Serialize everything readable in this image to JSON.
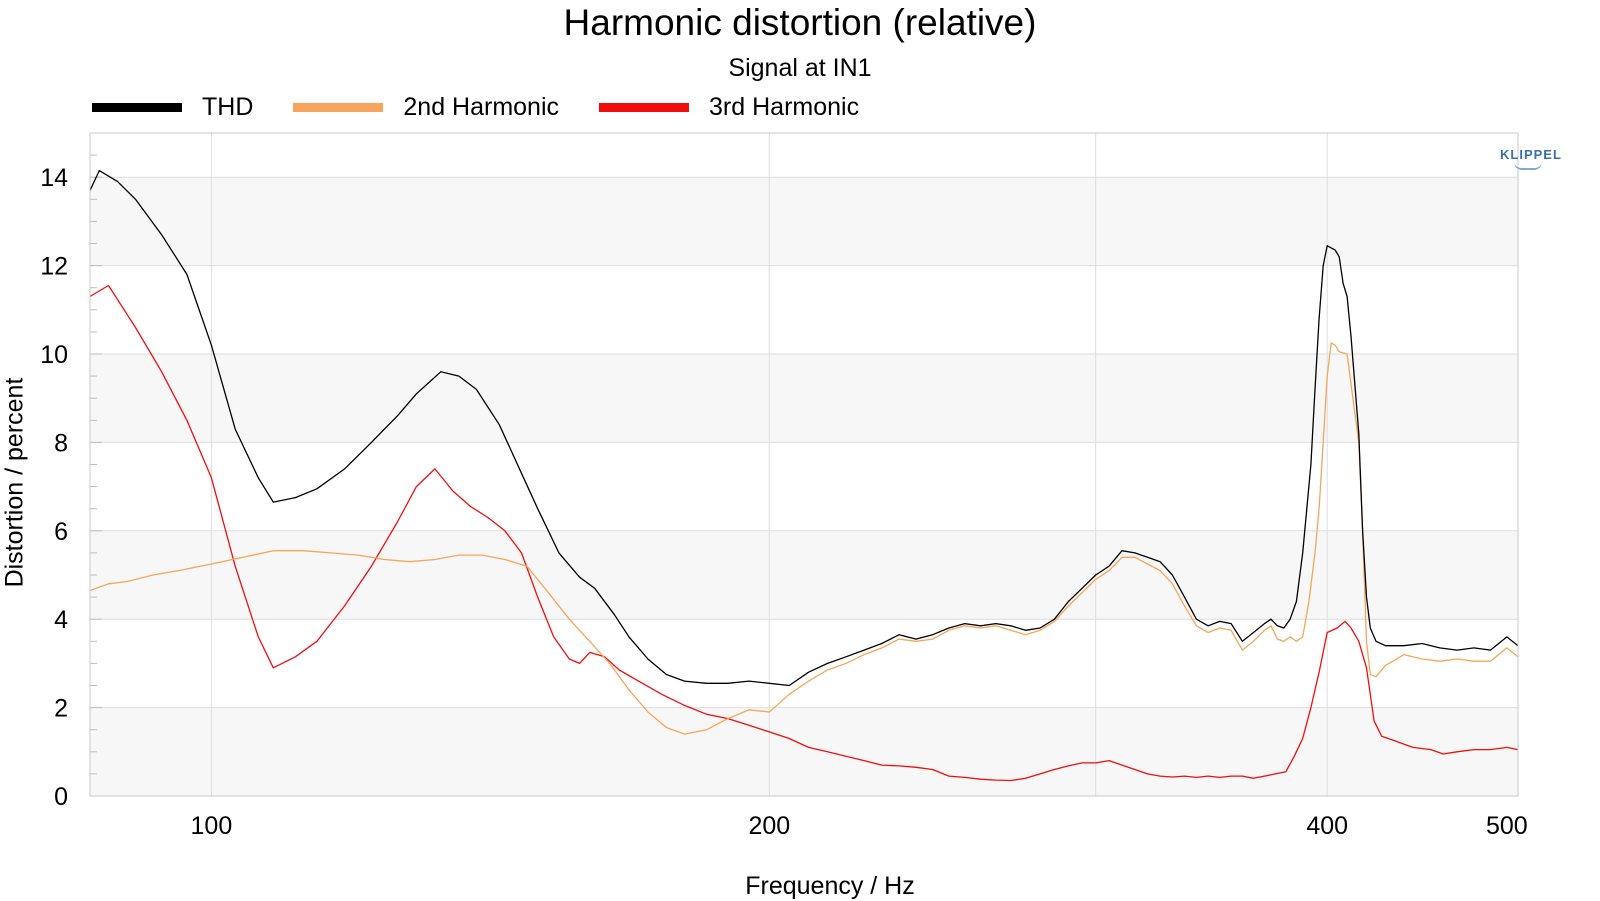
{
  "chart_data": {
    "type": "line",
    "title": "Harmonic distortion (relative)",
    "subtitle": "Signal at IN1",
    "xlabel": "Frequency / Hz",
    "ylabel": "Distortion / percent",
    "xscale": "log",
    "xlim": [
      86,
      507
    ],
    "ylim": [
      0,
      15
    ],
    "x_ticks": [
      100,
      200,
      400,
      500
    ],
    "y_ticks": [
      0,
      2,
      4,
      6,
      8,
      10,
      12,
      14
    ],
    "grid": true,
    "legend_position": "top-left",
    "brand": "KLIPPEL",
    "series": [
      {
        "name": "THD",
        "color": "#000000",
        "points": [
          [
            86,
            13.7
          ],
          [
            87,
            14.15
          ],
          [
            89,
            13.9
          ],
          [
            91,
            13.5
          ],
          [
            94,
            12.7
          ],
          [
            97,
            11.8
          ],
          [
            100,
            10.2
          ],
          [
            103,
            8.3
          ],
          [
            106,
            7.2
          ],
          [
            108,
            6.65
          ],
          [
            111,
            6.75
          ],
          [
            114,
            6.95
          ],
          [
            118,
            7.4
          ],
          [
            122,
            8.0
          ],
          [
            126,
            8.6
          ],
          [
            129,
            9.1
          ],
          [
            133,
            9.6
          ],
          [
            136,
            9.5
          ],
          [
            139,
            9.2
          ],
          [
            143,
            8.4
          ],
          [
            147,
            7.3
          ],
          [
            150,
            6.5
          ],
          [
            154,
            5.5
          ],
          [
            158,
            4.95
          ],
          [
            161,
            4.7
          ],
          [
            165,
            4.1
          ],
          [
            168,
            3.6
          ],
          [
            172,
            3.1
          ],
          [
            176,
            2.75
          ],
          [
            180,
            2.6
          ],
          [
            185,
            2.55
          ],
          [
            190,
            2.55
          ],
          [
            195,
            2.6
          ],
          [
            200,
            2.55
          ],
          [
            205,
            2.5
          ],
          [
            210,
            2.8
          ],
          [
            215,
            3.0
          ],
          [
            220,
            3.15
          ],
          [
            225,
            3.3
          ],
          [
            230,
            3.45
          ],
          [
            235,
            3.65
          ],
          [
            240,
            3.55
          ],
          [
            245,
            3.65
          ],
          [
            250,
            3.8
          ],
          [
            255,
            3.9
          ],
          [
            260,
            3.85
          ],
          [
            265,
            3.9
          ],
          [
            270,
            3.85
          ],
          [
            275,
            3.75
          ],
          [
            280,
            3.8
          ],
          [
            285,
            4.0
          ],
          [
            290,
            4.4
          ],
          [
            295,
            4.7
          ],
          [
            300,
            5.0
          ],
          [
            305,
            5.2
          ],
          [
            310,
            5.55
          ],
          [
            315,
            5.5
          ],
          [
            320,
            5.4
          ],
          [
            325,
            5.3
          ],
          [
            330,
            5.0
          ],
          [
            335,
            4.5
          ],
          [
            340,
            4.0
          ],
          [
            345,
            3.85
          ],
          [
            350,
            3.95
          ],
          [
            355,
            3.9
          ],
          [
            360,
            3.5
          ],
          [
            365,
            3.7
          ],
          [
            370,
            3.9
          ],
          [
            373,
            4.0
          ],
          [
            376,
            3.85
          ],
          [
            379,
            3.8
          ],
          [
            382,
            4.0
          ],
          [
            385,
            4.4
          ],
          [
            388,
            5.5
          ],
          [
            390,
            6.5
          ],
          [
            392,
            7.5
          ],
          [
            394,
            9.2
          ],
          [
            396,
            10.8
          ],
          [
            398,
            12.0
          ],
          [
            400,
            12.45
          ],
          [
            402,
            12.4
          ],
          [
            404,
            12.35
          ],
          [
            406,
            12.2
          ],
          [
            408,
            11.6
          ],
          [
            410,
            11.3
          ],
          [
            412,
            10.4
          ],
          [
            414,
            9.3
          ],
          [
            416,
            8.2
          ],
          [
            418,
            6.0
          ],
          [
            420,
            4.5
          ],
          [
            422,
            3.8
          ],
          [
            425,
            3.5
          ],
          [
            430,
            3.4
          ],
          [
            440,
            3.4
          ],
          [
            450,
            3.45
          ],
          [
            460,
            3.35
          ],
          [
            470,
            3.3
          ],
          [
            480,
            3.35
          ],
          [
            490,
            3.3
          ],
          [
            500,
            3.6
          ],
          [
            507,
            3.4
          ]
        ]
      },
      {
        "name": "2nd Harmonic",
        "color": "#f7a45c",
        "points": [
          [
            86,
            4.65
          ],
          [
            88,
            4.8
          ],
          [
            90,
            4.85
          ],
          [
            93,
            5.0
          ],
          [
            96,
            5.1
          ],
          [
            100,
            5.25
          ],
          [
            104,
            5.4
          ],
          [
            108,
            5.55
          ],
          [
            112,
            5.55
          ],
          [
            116,
            5.5
          ],
          [
            120,
            5.45
          ],
          [
            124,
            5.35
          ],
          [
            128,
            5.3
          ],
          [
            132,
            5.35
          ],
          [
            136,
            5.45
          ],
          [
            140,
            5.45
          ],
          [
            144,
            5.35
          ],
          [
            148,
            5.2
          ],
          [
            152,
            4.6
          ],
          [
            156,
            4.0
          ],
          [
            160,
            3.5
          ],
          [
            164,
            3.0
          ],
          [
            168,
            2.4
          ],
          [
            172,
            1.9
          ],
          [
            176,
            1.55
          ],
          [
            180,
            1.4
          ],
          [
            185,
            1.5
          ],
          [
            190,
            1.75
          ],
          [
            195,
            1.95
          ],
          [
            200,
            1.9
          ],
          [
            205,
            2.3
          ],
          [
            210,
            2.6
          ],
          [
            215,
            2.85
          ],
          [
            220,
            3.0
          ],
          [
            225,
            3.2
          ],
          [
            230,
            3.35
          ],
          [
            235,
            3.55
          ],
          [
            240,
            3.5
          ],
          [
            245,
            3.55
          ],
          [
            250,
            3.75
          ],
          [
            255,
            3.85
          ],
          [
            260,
            3.8
          ],
          [
            265,
            3.85
          ],
          [
            270,
            3.75
          ],
          [
            275,
            3.65
          ],
          [
            280,
            3.75
          ],
          [
            285,
            3.95
          ],
          [
            290,
            4.3
          ],
          [
            295,
            4.6
          ],
          [
            300,
            4.9
          ],
          [
            305,
            5.1
          ],
          [
            310,
            5.4
          ],
          [
            315,
            5.4
          ],
          [
            320,
            5.25
          ],
          [
            325,
            5.1
          ],
          [
            330,
            4.8
          ],
          [
            335,
            4.3
          ],
          [
            340,
            3.85
          ],
          [
            345,
            3.7
          ],
          [
            350,
            3.8
          ],
          [
            355,
            3.75
          ],
          [
            360,
            3.3
          ],
          [
            365,
            3.5
          ],
          [
            370,
            3.75
          ],
          [
            373,
            3.85
          ],
          [
            376,
            3.55
          ],
          [
            379,
            3.5
          ],
          [
            382,
            3.6
          ],
          [
            385,
            3.5
          ],
          [
            388,
            3.6
          ],
          [
            391,
            4.4
          ],
          [
            394,
            5.5
          ],
          [
            396,
            6.5
          ],
          [
            398,
            8.0
          ],
          [
            400,
            9.5
          ],
          [
            402,
            10.25
          ],
          [
            404,
            10.2
          ],
          [
            406,
            10.05
          ],
          [
            410,
            10.0
          ],
          [
            413,
            9.0
          ],
          [
            416,
            8.0
          ],
          [
            418,
            6.0
          ],
          [
            420,
            3.5
          ],
          [
            422,
            2.75
          ],
          [
            425,
            2.7
          ],
          [
            430,
            2.95
          ],
          [
            440,
            3.2
          ],
          [
            450,
            3.1
          ],
          [
            460,
            3.05
          ],
          [
            470,
            3.1
          ],
          [
            480,
            3.05
          ],
          [
            490,
            3.05
          ],
          [
            500,
            3.35
          ],
          [
            507,
            3.15
          ]
        ]
      },
      {
        "name": "3rd Harmonic",
        "color": "#f20d0d",
        "points": [
          [
            86,
            11.3
          ],
          [
            88,
            11.55
          ],
          [
            91,
            10.6
          ],
          [
            94,
            9.6
          ],
          [
            97,
            8.5
          ],
          [
            100,
            7.2
          ],
          [
            103,
            5.2
          ],
          [
            106,
            3.6
          ],
          [
            108,
            2.9
          ],
          [
            111,
            3.15
          ],
          [
            114,
            3.5
          ],
          [
            118,
            4.3
          ],
          [
            122,
            5.2
          ],
          [
            126,
            6.2
          ],
          [
            129,
            7.0
          ],
          [
            132,
            7.4
          ],
          [
            135,
            6.9
          ],
          [
            138,
            6.55
          ],
          [
            141,
            6.3
          ],
          [
            144,
            6.0
          ],
          [
            147,
            5.5
          ],
          [
            150,
            4.5
          ],
          [
            153,
            3.6
          ],
          [
            156,
            3.1
          ],
          [
            158,
            3.0
          ],
          [
            160,
            3.25
          ],
          [
            163,
            3.15
          ],
          [
            166,
            2.85
          ],
          [
            170,
            2.6
          ],
          [
            175,
            2.3
          ],
          [
            180,
            2.05
          ],
          [
            185,
            1.85
          ],
          [
            190,
            1.75
          ],
          [
            195,
            1.6
          ],
          [
            200,
            1.45
          ],
          [
            205,
            1.3
          ],
          [
            210,
            1.1
          ],
          [
            215,
            1.0
          ],
          [
            220,
            0.9
          ],
          [
            225,
            0.8
          ],
          [
            230,
            0.7
          ],
          [
            235,
            0.68
          ],
          [
            240,
            0.65
          ],
          [
            245,
            0.6
          ],
          [
            250,
            0.45
          ],
          [
            255,
            0.42
          ],
          [
            260,
            0.38
          ],
          [
            265,
            0.36
          ],
          [
            270,
            0.35
          ],
          [
            275,
            0.4
          ],
          [
            280,
            0.5
          ],
          [
            285,
            0.6
          ],
          [
            290,
            0.68
          ],
          [
            295,
            0.75
          ],
          [
            300,
            0.75
          ],
          [
            305,
            0.8
          ],
          [
            310,
            0.7
          ],
          [
            315,
            0.6
          ],
          [
            320,
            0.5
          ],
          [
            325,
            0.45
          ],
          [
            330,
            0.43
          ],
          [
            335,
            0.45
          ],
          [
            340,
            0.42
          ],
          [
            345,
            0.45
          ],
          [
            350,
            0.42
          ],
          [
            355,
            0.45
          ],
          [
            360,
            0.45
          ],
          [
            365,
            0.4
          ],
          [
            370,
            0.45
          ],
          [
            375,
            0.5
          ],
          [
            380,
            0.55
          ],
          [
            384,
            0.9
          ],
          [
            388,
            1.3
          ],
          [
            392,
            2.0
          ],
          [
            396,
            2.8
          ],
          [
            400,
            3.7
          ],
          [
            405,
            3.8
          ],
          [
            409,
            3.95
          ],
          [
            412,
            3.8
          ],
          [
            416,
            3.5
          ],
          [
            420,
            2.9
          ],
          [
            424,
            1.7
          ],
          [
            428,
            1.35
          ],
          [
            435,
            1.25
          ],
          [
            445,
            1.1
          ],
          [
            455,
            1.05
          ],
          [
            462,
            0.95
          ],
          [
            470,
            1.0
          ],
          [
            480,
            1.05
          ],
          [
            490,
            1.05
          ],
          [
            500,
            1.1
          ],
          [
            507,
            1.05
          ]
        ]
      }
    ]
  }
}
